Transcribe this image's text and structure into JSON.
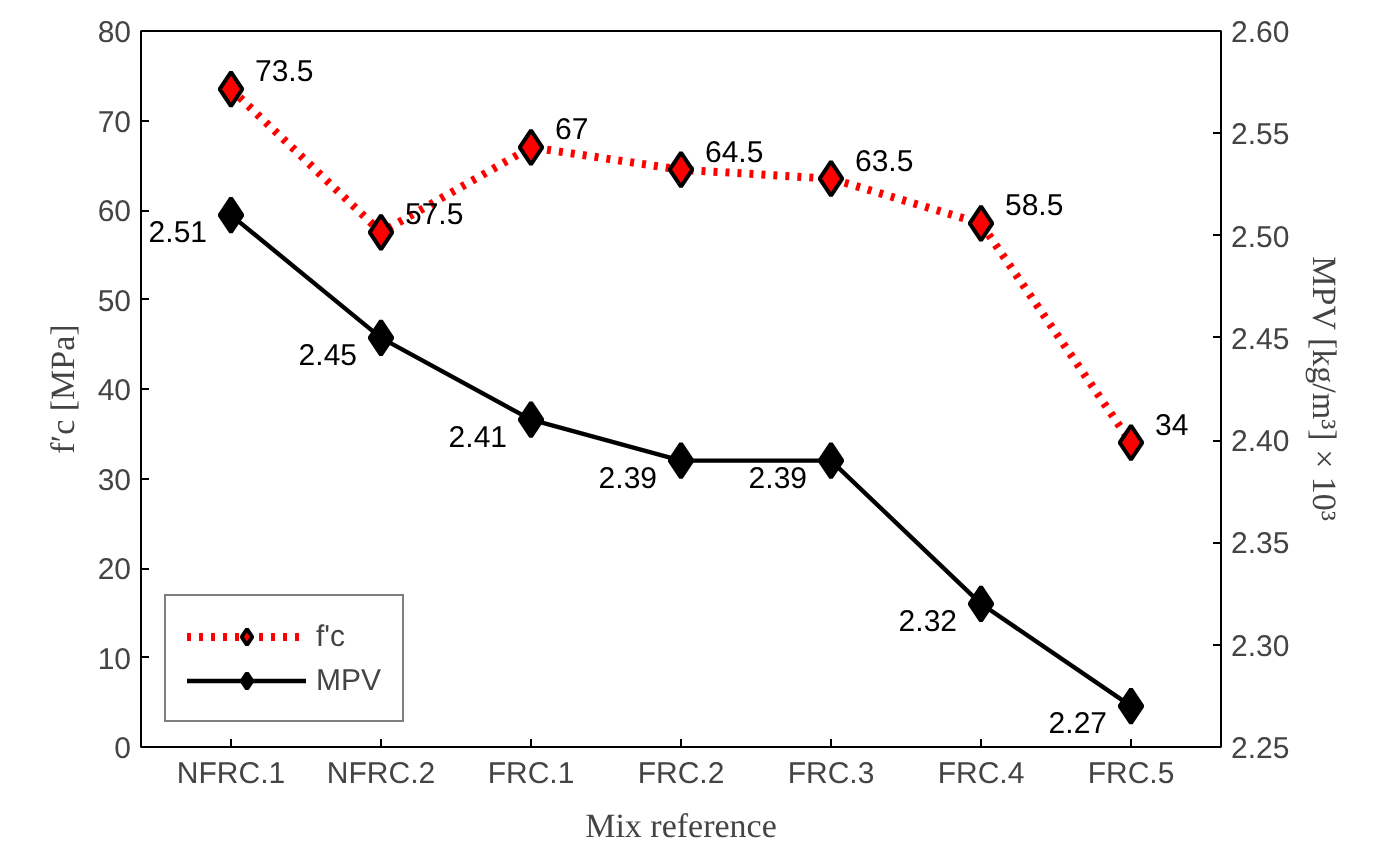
{
  "chart_data": {
    "type": "line",
    "xlabel": "Mix reference",
    "ylabel": "f′c [MPa]",
    "y2label": "MPV [kg/m³] × 10³",
    "categories": [
      "NFRC.1",
      "NFRC.2",
      "FRC.1",
      "FRC.2",
      "FRC.3",
      "FRC.4",
      "FRC.5"
    ],
    "series": [
      {
        "name": "f'c",
        "color": "#ff0000",
        "line_style": "dotted",
        "values": [
          73.5,
          57.5,
          67,
          64.5,
          63.5,
          58.5,
          34
        ]
      },
      {
        "name": "MPV",
        "color": "#000000",
        "line_style": "solid",
        "axis": "y2",
        "values": [
          2.51,
          2.45,
          2.41,
          2.39,
          2.39,
          2.32,
          2.27
        ]
      }
    ],
    "ylim": [
      0,
      80
    ],
    "yticks": [
      0,
      10,
      20,
      30,
      40,
      50,
      60,
      70,
      80
    ],
    "y2lim": [
      2.25,
      2.6
    ],
    "y2ticks": [
      2.25,
      {
        "value": 2.3,
        "label": "2.30"
      },
      2.35,
      {
        "value": 2.4,
        "label": "2.40"
      },
      2.45,
      {
        "value": 2.5,
        "label": "2.50"
      },
      2.55,
      {
        "value": 2.6,
        "label": "2.60"
      }
    ],
    "marker": "diamond",
    "data_labels": true,
    "grid": false,
    "legend": "bottom left"
  }
}
